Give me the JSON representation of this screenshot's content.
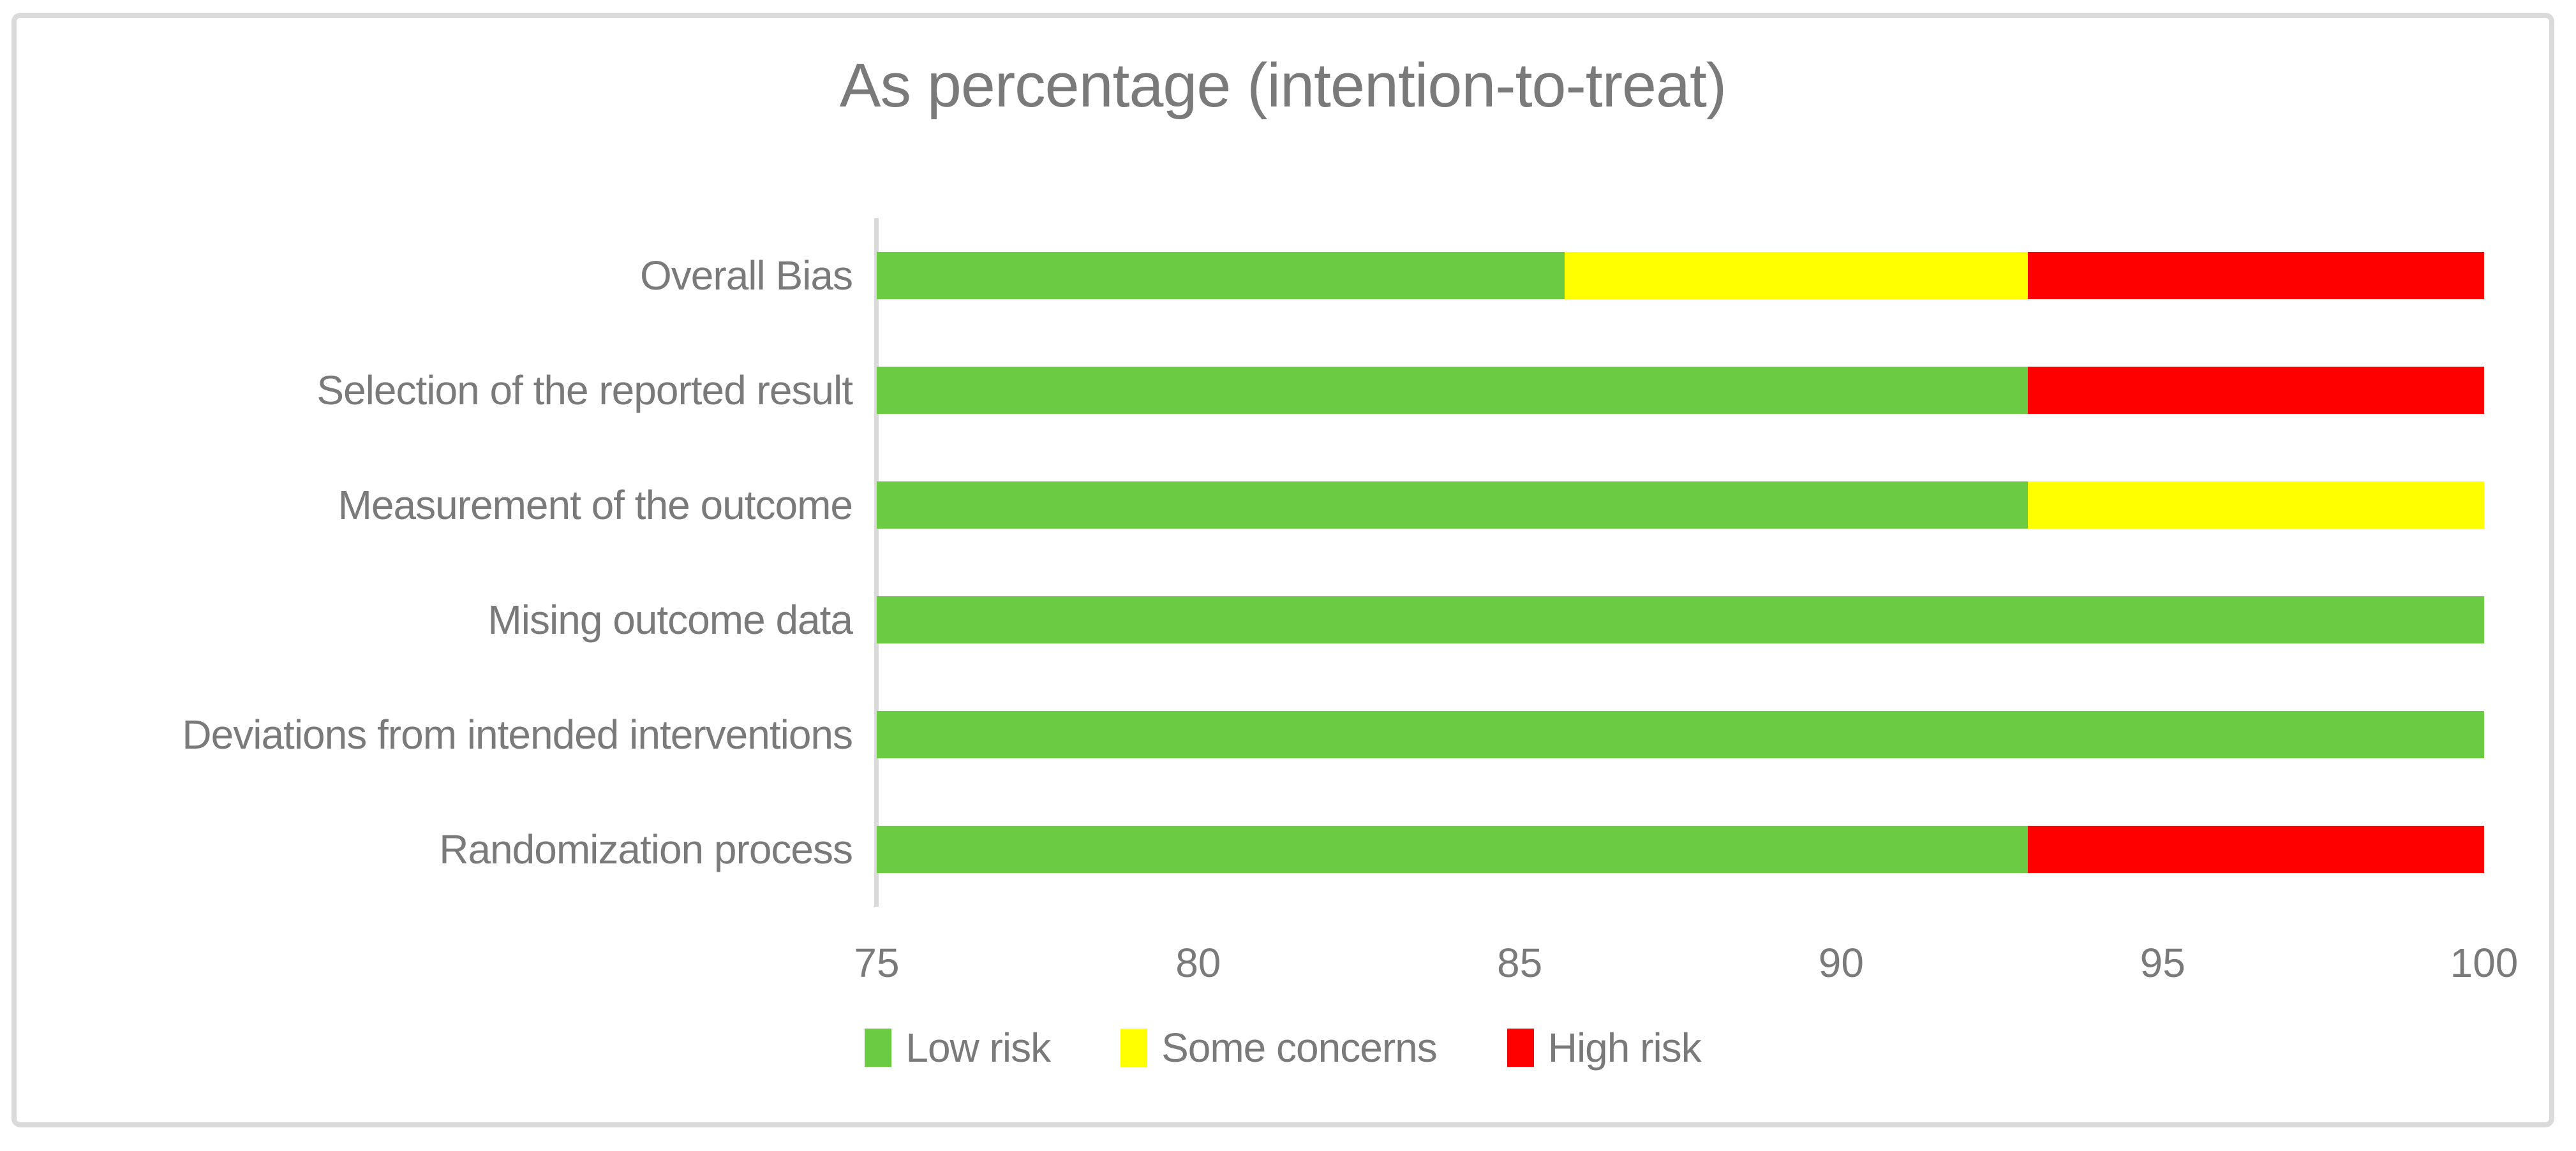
{
  "title": "As percentage (intention-to-treat)",
  "chart_data": {
    "type": "bar",
    "orientation": "horizontal",
    "stacked": true,
    "title": "As percentage (intention-to-treat)",
    "categories": [
      "Overall Bias",
      "Selection of the reported result",
      "Measurement of the outcome",
      "Mising outcome data",
      "Deviations from intended interventions",
      "Randomization process"
    ],
    "series": [
      {
        "name": "Low risk",
        "color": "#6bcb43",
        "values": [
          85.7,
          92.9,
          92.9,
          100,
          100,
          92.9
        ]
      },
      {
        "name": "Some concerns",
        "color": "#ffff00",
        "values": [
          7.2,
          0,
          7.1,
          0,
          0,
          0
        ]
      },
      {
        "name": "High risk",
        "color": "#ff0000",
        "values": [
          7.1,
          7.1,
          0,
          0,
          0,
          7.1
        ]
      }
    ],
    "units": "percent",
    "xlabel": "",
    "ylabel": "",
    "xlim": [
      75,
      100
    ],
    "x_ticks": [
      "75",
      "80",
      "85",
      "90",
      "95",
      "100"
    ],
    "grid": false,
    "legend_position": "bottom"
  },
  "colors": {
    "background": "#ffffff",
    "frame_border": "#dadada",
    "axis_line": "#d9d9d9",
    "text": "#7a7a7a"
  }
}
